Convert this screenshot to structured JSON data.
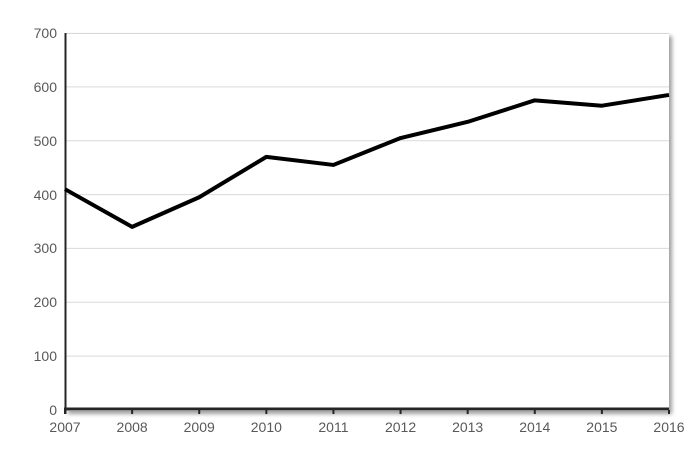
{
  "chart_data": {
    "type": "line",
    "title": "",
    "xlabel": "",
    "ylabel": "",
    "categories": [
      "2007",
      "2008",
      "2009",
      "2010",
      "2011",
      "2012",
      "2013",
      "2014",
      "2015",
      "2016"
    ],
    "series": [
      {
        "name": "",
        "values": [
          410,
          340,
          395,
          470,
          455,
          505,
          535,
          575,
          565,
          585
        ]
      }
    ],
    "ylim": [
      0,
      700
    ],
    "ytick_step": 100,
    "ytick_labels": [
      "0",
      "100",
      "200",
      "300",
      "400",
      "500",
      "600",
      "700"
    ],
    "grid": true,
    "legend_position": "none",
    "line_color": "#000000",
    "line_width": 4,
    "gridline_color": "#d9d9d9",
    "axis_color": "#262626",
    "tick_label_color": "#595959",
    "plot_background": "#ffffff"
  }
}
